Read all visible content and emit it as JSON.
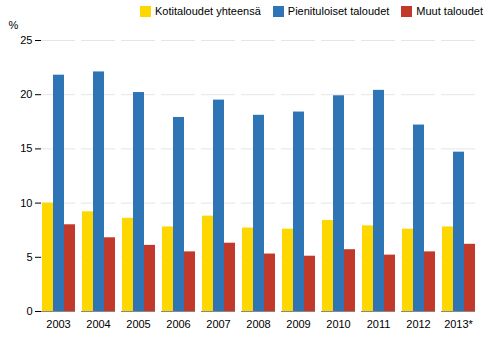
{
  "chart_data": {
    "type": "bar",
    "categories": [
      "2003",
      "2004",
      "2005",
      "2006",
      "2007",
      "2008",
      "2009",
      "2010",
      "2011",
      "2012",
      "2013*"
    ],
    "series": [
      {
        "name": "Kotitaloudet yhteensä",
        "color": "#FFD700",
        "values": [
          10.0,
          9.2,
          8.6,
          7.8,
          8.8,
          7.7,
          7.6,
          8.4,
          7.9,
          7.6,
          7.8
        ]
      },
      {
        "name": "Pienituloiset taloudet",
        "color": "#2E75B6",
        "values": [
          21.8,
          22.1,
          20.2,
          17.9,
          19.5,
          18.1,
          18.4,
          19.9,
          20.4,
          17.2,
          14.7
        ]
      },
      {
        "name": "Muut taloudet",
        "color": "#C0392B",
        "values": [
          8.0,
          6.8,
          6.1,
          5.5,
          6.3,
          5.3,
          5.1,
          5.7,
          5.2,
          5.5,
          6.2
        ]
      }
    ],
    "ylabel": "%",
    "ylim": [
      0,
      25
    ],
    "yticks": [
      0,
      5,
      10,
      15,
      20,
      25
    ],
    "grid": true,
    "legend": "upper right"
  }
}
